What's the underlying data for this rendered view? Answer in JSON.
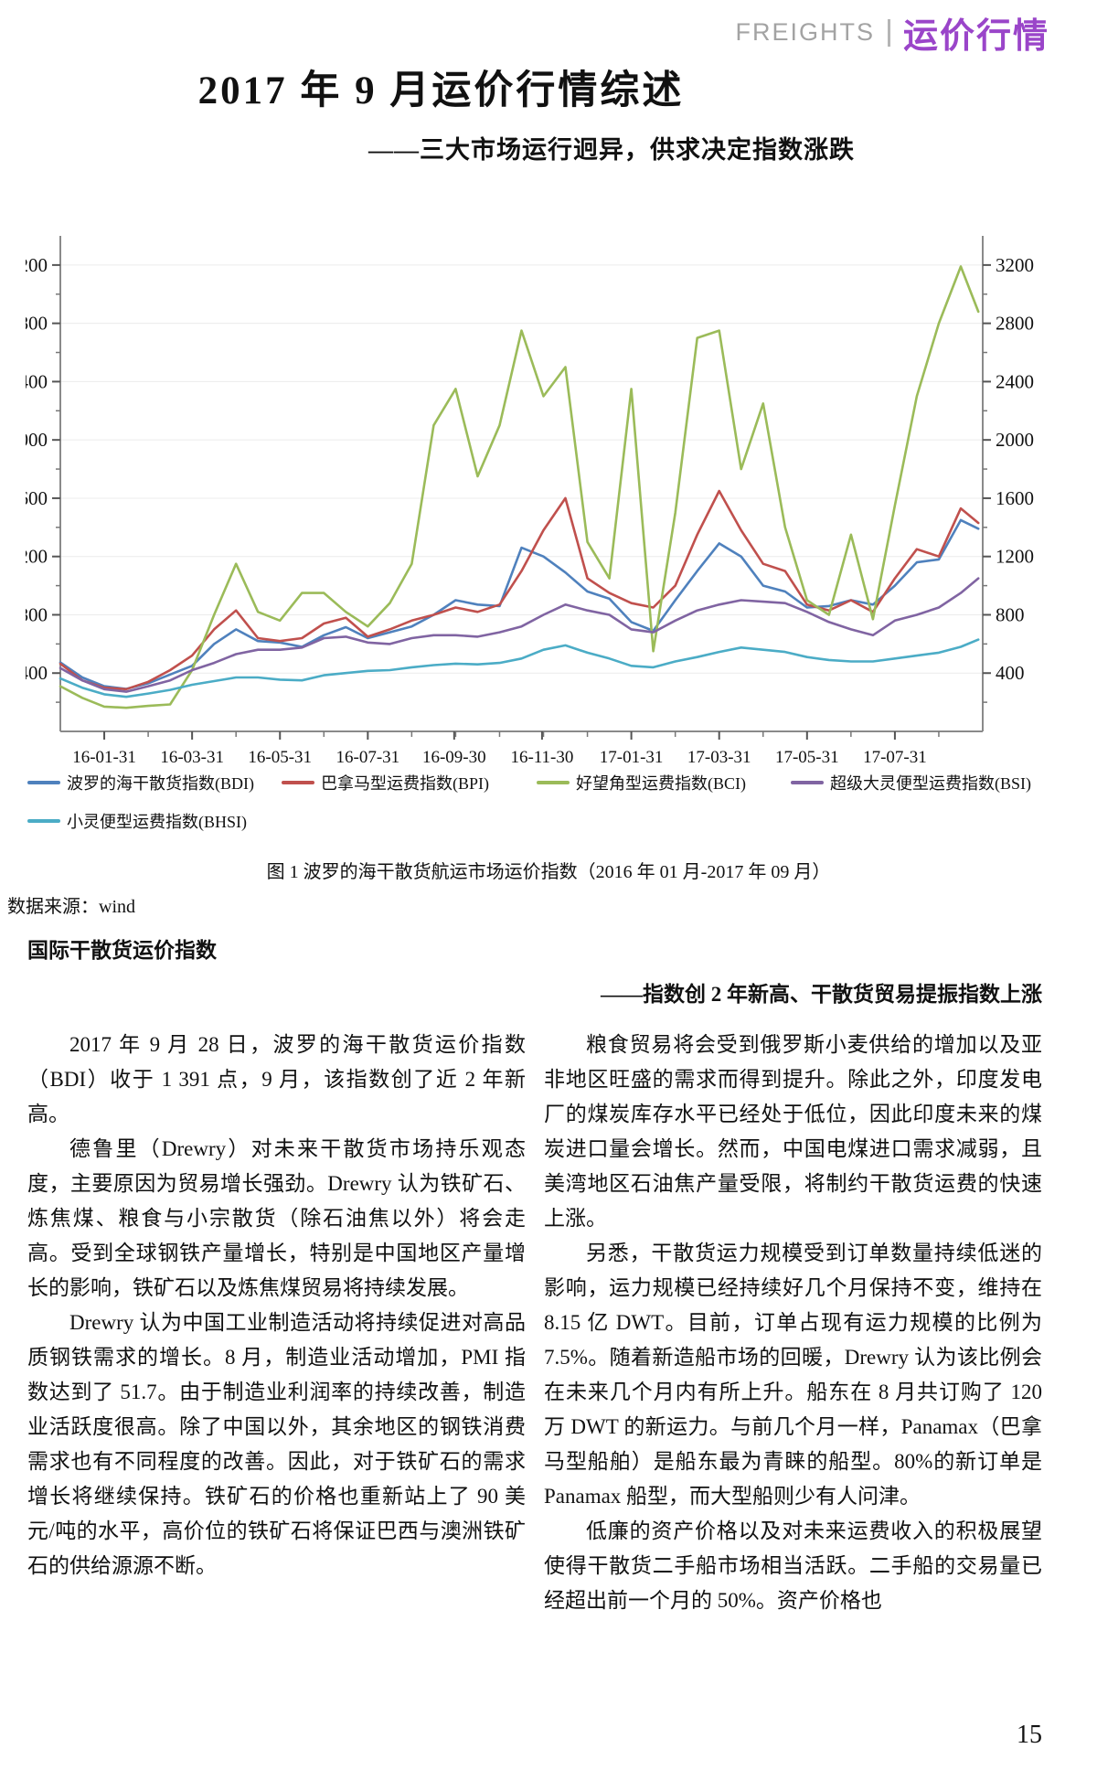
{
  "header": {
    "section_en": "FREIGHTS",
    "section_zh": "运价行情",
    "accent_color": "#9A45C9"
  },
  "title": "2017 年 9 月运价行情综述",
  "subtitle": "——三大市场运行迥异，供求决定指数涨跌",
  "figure": {
    "caption": "图 1 波罗的海干散货航运市场运价指数（2016 年 01 月-2017 年 09 月）",
    "source_label": "数据来源：",
    "source_value": "wind"
  },
  "chart_data": {
    "type": "line",
    "title": "",
    "xlabel": "",
    "ylabel": "",
    "grid": true,
    "legend_position": "bottom",
    "ylim": [
      0,
      3400
    ],
    "y_ticks": [
      400,
      800,
      1200,
      1600,
      2000,
      2400,
      2800,
      3200
    ],
    "x_tick_labels": [
      "16-01-31",
      "16-03-31",
      "16-05-31",
      "16-07-31",
      "16-09-30",
      "16-11-30",
      "17-01-31",
      "17-03-31",
      "17-05-31",
      "17-07-31"
    ],
    "x_dates": [
      "16-01-01",
      "16-01-16",
      "16-02-01",
      "16-02-16",
      "16-03-01",
      "16-03-16",
      "16-04-01",
      "16-04-16",
      "16-05-01",
      "16-05-16",
      "16-06-01",
      "16-06-16",
      "16-07-01",
      "16-07-16",
      "16-08-01",
      "16-08-16",
      "16-09-01",
      "16-09-16",
      "16-10-01",
      "16-10-16",
      "16-11-01",
      "16-11-16",
      "16-12-01",
      "16-12-16",
      "17-01-01",
      "17-01-16",
      "17-02-01",
      "17-02-16",
      "17-03-01",
      "17-03-16",
      "17-04-01",
      "17-04-16",
      "17-05-01",
      "17-05-16",
      "17-06-01",
      "17-06-16",
      "17-07-01",
      "17-07-16",
      "17-08-01",
      "17-08-16",
      "17-09-01",
      "17-09-16",
      "17-09-28"
    ],
    "series": [
      {
        "name": "波罗的海干散货指数(BDI)",
        "color": "#4F81BD",
        "values": [
          473,
          370,
          310,
          292,
          330,
          390,
          450,
          600,
          700,
          620,
          610,
          580,
          660,
          715,
          640,
          680,
          720,
          800,
          900,
          870,
          860,
          1260,
          1200,
          1090,
          960,
          910,
          750,
          690,
          900,
          1100,
          1290,
          1200,
          1000,
          960,
          850,
          860,
          900,
          870,
          1000,
          1160,
          1180,
          1450,
          1391
        ]
      },
      {
        "name": "巴拿马型运费指数(BPI)",
        "color": "#C0504D",
        "values": [
          464,
          350,
          300,
          290,
          340,
          420,
          520,
          700,
          830,
          640,
          620,
          640,
          740,
          780,
          650,
          700,
          760,
          800,
          850,
          820,
          870,
          1100,
          1380,
          1600,
          1050,
          950,
          880,
          850,
          1000,
          1350,
          1650,
          1380,
          1150,
          1100,
          870,
          830,
          900,
          820,
          1050,
          1250,
          1200,
          1530,
          1430
        ]
      },
      {
        "name": "好望角型运费指数(BCI)",
        "color": "#9BBB59",
        "values": [
          310,
          230,
          170,
          162,
          175,
          185,
          420,
          800,
          1150,
          820,
          760,
          950,
          950,
          820,
          720,
          880,
          1150,
          2100,
          2350,
          1750,
          2100,
          2750,
          2300,
          2500,
          1300,
          1050,
          2350,
          550,
          1500,
          2700,
          2750,
          1800,
          2250,
          1400,
          900,
          800,
          1350,
          770,
          1550,
          2300,
          2800,
          3190,
          2880
        ]
      },
      {
        "name": "超级大灵便型运费指数(BSI)",
        "color": "#8064A2",
        "values": [
          435,
          350,
          290,
          272,
          310,
          350,
          420,
          470,
          530,
          560,
          560,
          575,
          640,
          650,
          610,
          600,
          640,
          660,
          660,
          650,
          680,
          720,
          800,
          870,
          830,
          800,
          700,
          680,
          760,
          830,
          870,
          900,
          890,
          880,
          820,
          750,
          700,
          660,
          760,
          800,
          850,
          950,
          1050
        ]
      },
      {
        "name": "小灵便型运费指数(BHSI)",
        "color": "#4BACC6",
        "values": [
          363,
          300,
          255,
          237,
          260,
          285,
          320,
          345,
          370,
          370,
          355,
          350,
          385,
          400,
          415,
          420,
          440,
          455,
          465,
          460,
          470,
          500,
          560,
          590,
          540,
          500,
          450,
          440,
          480,
          510,
          545,
          575,
          560,
          545,
          510,
          490,
          480,
          480,
          500,
          520,
          540,
          580,
          630
        ]
      }
    ]
  },
  "section": {
    "heading": "国际干散货运价指数",
    "subheading": "——指数创 2 年新高、干散货贸易提振指数上涨"
  },
  "columns": {
    "left": [
      "2017 年 9 月 28 日，波罗的海干散货运价指数（BDI）收于 1 391 点，9 月，该指数创了近 2 年新高。",
      "德鲁里（Drewry）对未来干散货市场持乐观态度，主要原因为贸易增长强劲。Drewry 认为铁矿石、炼焦煤、粮食与小宗散货（除石油焦以外）将会走高。受到全球钢铁产量增长，特别是中国地区产量增长的影响，铁矿石以及炼焦煤贸易将持续发展。",
      "Drewry 认为中国工业制造活动将持续促进对高品质钢铁需求的增长。8 月，制造业活动增加，PMI 指数达到了 51.7。由于制造业利润率的持续改善，制造业活跃度很高。除了中国以外，其余地区的钢铁消费需求也有不同程度的改善。因此，对于铁矿石的需求增长将继续保持。铁矿石的价格也重新站上了 90 美元/吨的水平，高价位的铁矿石将保证巴西与澳洲铁矿石的供给源源不断。"
    ],
    "right": [
      "粮食贸易将会受到俄罗斯小麦供给的增加以及亚非地区旺盛的需求而得到提升。除此之外，印度发电厂的煤炭库存水平已经处于低位，因此印度未来的煤炭进口量会增长。然而，中国电煤进口需求减弱，且美湾地区石油焦产量受限，将制约干散货运费的快速上涨。",
      "另悉，干散货运力规模受到订单数量持续低迷的影响，运力规模已经持续好几个月保持不变，维持在 8.15 亿 DWT。目前，订单占现有运力规模的比例为 7.5%。随着新造船市场的回暖，Drewry 认为该比例会在未来几个月内有所上升。船东在 8 月共订购了 120 万 DWT 的新运力。与前几个月一样，Panamax（巴拿马型船舶）是船东最为青睐的船型。80%的新订单是 Panamax 船型，而大型船则少有人问津。",
      "低廉的资产价格以及对未来运费收入的积极展望使得干散货二手船市场相当活跃。二手船的交易量已经超出前一个月的 50%。资产价格也"
    ]
  },
  "page_number": "15"
}
